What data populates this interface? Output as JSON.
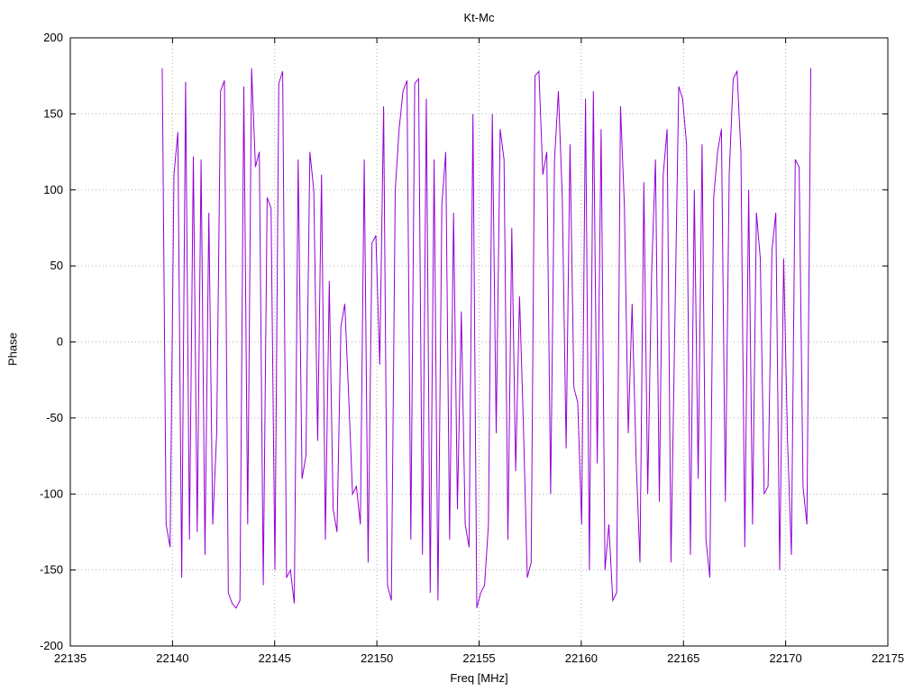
{
  "title": "Kt-Mc",
  "chart_data": {
    "type": "line",
    "title": "Kt-Mc",
    "xlabel": "Freq [MHz]",
    "ylabel": "Phase",
    "xlim": [
      22135,
      22175
    ],
    "ylim": [
      -200,
      200
    ],
    "xticks": [
      22135,
      22140,
      22145,
      22150,
      22155,
      22160,
      22165,
      22170,
      22175
    ],
    "yticks": [
      -200,
      -150,
      -100,
      -50,
      0,
      50,
      100,
      150,
      200
    ],
    "grid": true,
    "legend": "none",
    "line_color": "#9400d3",
    "x_start": 22139.5,
    "x_step": 0.19,
    "y": [
      180,
      -120,
      -135,
      110,
      138,
      -155,
      171,
      -130,
      122,
      -125,
      120,
      -140,
      85,
      -120,
      -60,
      165,
      172,
      -165,
      -172,
      -175,
      -170,
      168,
      -120,
      180,
      115,
      125,
      -160,
      95,
      88,
      -150,
      170,
      178,
      -155,
      -150,
      -172,
      120,
      -90,
      -75,
      125,
      100,
      -65,
      110,
      -130,
      40,
      -110,
      -125,
      10,
      25,
      -35,
      -100,
      -95,
      -120,
      120,
      -145,
      65,
      70,
      -15,
      155,
      -160,
      -170,
      100,
      140,
      165,
      172,
      -130,
      170,
      173,
      -140,
      160,
      -165,
      120,
      -170,
      90,
      125,
      -130,
      85,
      -110,
      20,
      -120,
      -135,
      150,
      -175,
      -165,
      -160,
      -120,
      150,
      -60,
      140,
      120,
      -130,
      75,
      -85,
      30,
      -55,
      -155,
      -145,
      175,
      178,
      110,
      125,
      -100,
      120,
      165,
      95,
      -70,
      130,
      -30,
      -40,
      -120,
      160,
      -150,
      165,
      -80,
      140,
      -150,
      -120,
      -170,
      -165,
      155,
      90,
      -60,
      25,
      -75,
      -145,
      105,
      -100,
      45,
      120,
      -105,
      110,
      140,
      -145,
      12,
      168,
      160,
      130,
      -140,
      100,
      -90,
      130,
      -130,
      -155,
      95,
      125,
      140,
      -105,
      110,
      173,
      178,
      125,
      -135,
      100,
      -120,
      85,
      55,
      -100,
      -95,
      60,
      85,
      -150,
      55,
      -65,
      -140,
      120,
      115,
      -95,
      -120,
      180
    ]
  }
}
